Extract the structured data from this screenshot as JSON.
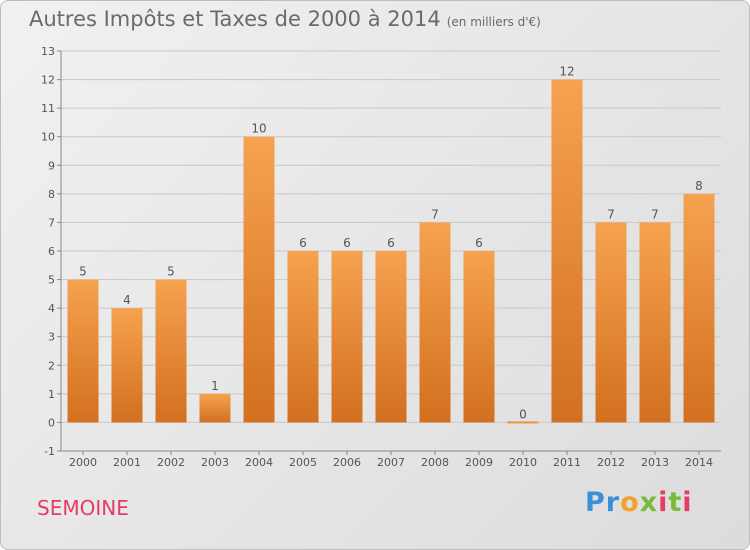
{
  "chart_data": {
    "type": "bar",
    "title": "Autres Impôts et Taxes de 2000 à 2014",
    "unit_note": "(en milliers d'€)",
    "categories": [
      "2000",
      "2001",
      "2002",
      "2003",
      "2004",
      "2005",
      "2006",
      "2007",
      "2008",
      "2009",
      "2010",
      "2011",
      "2012",
      "2013",
      "2014"
    ],
    "values": [
      5,
      4,
      5,
      1,
      10,
      6,
      6,
      6,
      7,
      6,
      0,
      12,
      7,
      7,
      8
    ],
    "ylim": [
      -1,
      13
    ],
    "yticks": [
      -1,
      0,
      1,
      2,
      3,
      4,
      5,
      6,
      7,
      8,
      9,
      10,
      11,
      12,
      13
    ],
    "grid": true,
    "bar_color": "#f0923a"
  },
  "footer": {
    "town": "SEMOINE",
    "logo": "Proxiti"
  }
}
